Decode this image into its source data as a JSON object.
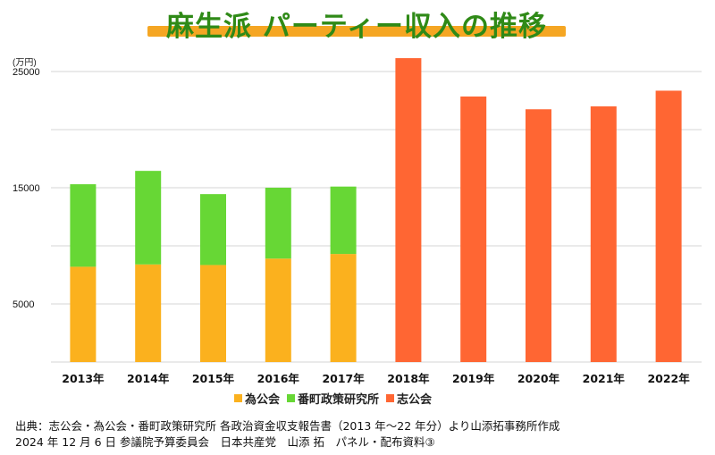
{
  "header": {
    "title": "麻生派 パーティー収入の推移"
  },
  "chart_data": {
    "type": "bar",
    "stacked": true,
    "title": "麻生派 パーティー収入の推移",
    "ylabel": "(万円)",
    "xlabel": "",
    "ylim": [
      0,
      25000
    ],
    "yticks": [
      5000,
      15000,
      25000
    ],
    "ytick_labels": [
      "5000",
      "15000",
      "25000"
    ],
    "grid_step": 5000,
    "grid": true,
    "legend_position": "bottom",
    "categories": [
      "2013年",
      "2014年",
      "2015年",
      "2016年",
      "2017年",
      "2018年",
      "2019年",
      "2020年",
      "2021年",
      "2022年"
    ],
    "series": [
      {
        "name": "為公会",
        "color": "#fbb11e",
        "values": [
          8200,
          8400,
          8350,
          8900,
          9300,
          0,
          0,
          0,
          0,
          0
        ]
      },
      {
        "name": "番町政策研究所",
        "color": "#67d735",
        "values": [
          7100,
          8050,
          6100,
          6100,
          5800,
          0,
          0,
          0,
          0,
          0
        ]
      },
      {
        "name": "志公会",
        "color": "#ff6633",
        "values": [
          0,
          0,
          0,
          0,
          0,
          26150,
          22850,
          21750,
          22000,
          23350
        ]
      }
    ]
  },
  "legend": {
    "items": [
      {
        "label": "為公会",
        "color": "#fbb11e"
      },
      {
        "label": "番町政策研究所",
        "color": "#67d735"
      },
      {
        "label": "志公会",
        "color": "#ff6633"
      }
    ]
  },
  "footer": {
    "line1": "出典：志公会・為公会・番町政策研究所 各政治資金収支報告書（2013 年～22 年分）より山添拓事務所作成",
    "line2": "2024 年 12 月 6 日 参議院予算委員会　日本共産党　山添 拓　パネル・配布資料③"
  },
  "colors": {
    "title_text": "#2f8a17",
    "title_highlight": "#f5a623",
    "gridline": "#d6d6d6"
  }
}
